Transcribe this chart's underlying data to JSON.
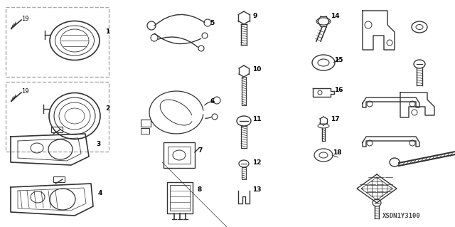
{
  "bg_color": "#ffffff",
  "part_number_text": "XSDN1Y3100",
  "fig_width": 6.4,
  "fig_height": 3.19,
  "dpi": 100,
  "line_color": "#333333",
  "text_color": "#000000",
  "font_size_label": 6.5,
  "font_size_partno": 6.5
}
